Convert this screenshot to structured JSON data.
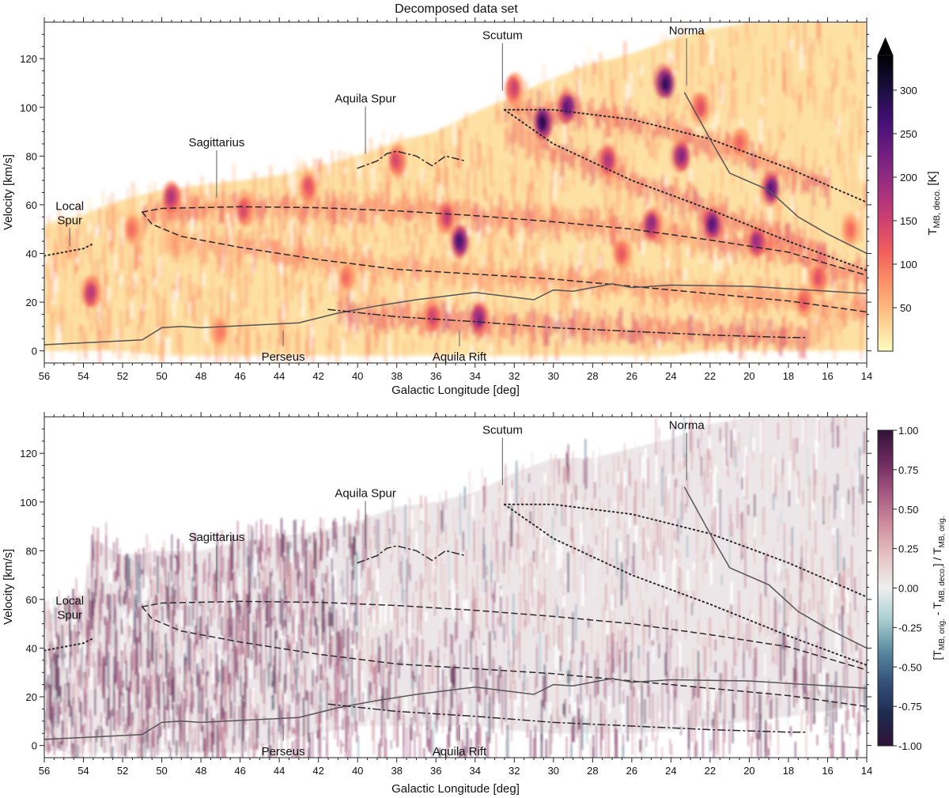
{
  "chart_data": [
    {
      "type": "heatmap",
      "title": "Decomposed data set",
      "xlabel": "Galactic Longitude [deg]",
      "ylabel": "Velocity [km/s]",
      "xlim": [
        56,
        14
      ],
      "ylim": [
        -5,
        135
      ],
      "xticks": [
        56,
        54,
        52,
        50,
        48,
        46,
        44,
        42,
        40,
        38,
        36,
        34,
        32,
        30,
        28,
        26,
        24,
        22,
        20,
        18,
        16,
        14
      ],
      "yticks": [
        0,
        20,
        40,
        60,
        80,
        100,
        120
      ],
      "colorbar": {
        "label": "T_MB,deco. [K]",
        "label_main": "T",
        "label_sub": "MB, deco.",
        "label_unit": " [K]",
        "ticks": [
          50,
          100,
          150,
          200,
          250,
          300
        ],
        "range": [
          0,
          340
        ],
        "extend": "max",
        "colormap": "magma_r",
        "colors": [
          "#fcfdbf",
          "#feca8d",
          "#fd9668",
          "#f1605d",
          "#cd4071",
          "#9e2f7f",
          "#721f81",
          "#440f76",
          "#180f3d",
          "#000004"
        ]
      },
      "emission": {
        "envelope_lon": [
          56,
          54,
          52,
          50,
          48,
          46,
          44,
          42,
          40,
          38,
          36,
          34,
          32,
          30,
          28,
          26,
          24,
          22,
          20,
          18,
          16,
          14
        ],
        "envelope_top": [
          52,
          56,
          62,
          66,
          68,
          70,
          72,
          76,
          80,
          86,
          90,
          98,
          105,
          112,
          118,
          122,
          128,
          132,
          135,
          135,
          135,
          135
        ],
        "envelope_bottom": [
          0,
          0,
          0,
          -2,
          -2,
          -2,
          -2,
          -2,
          -2,
          -2,
          -2,
          -2,
          -2,
          -2,
          -2,
          -2,
          -2,
          0,
          0,
          0,
          0,
          0
        ],
        "clumps": [
          {
            "lon": 30.5,
            "v": 94,
            "peak": 330
          },
          {
            "lon": 24.3,
            "v": 110,
            "peak": 320
          },
          {
            "lon": 34.8,
            "v": 45,
            "peak": 300
          },
          {
            "lon": 29.3,
            "v": 100,
            "peak": 280
          },
          {
            "lon": 18.9,
            "v": 67,
            "peak": 280
          },
          {
            "lon": 21.9,
            "v": 52,
            "peak": 280
          },
          {
            "lon": 23.5,
            "v": 80,
            "peak": 240
          },
          {
            "lon": 25.0,
            "v": 52,
            "peak": 230
          },
          {
            "lon": 19.6,
            "v": 45,
            "peak": 220
          },
          {
            "lon": 27.2,
            "v": 78,
            "peak": 200
          },
          {
            "lon": 33.8,
            "v": 13,
            "peak": 240
          },
          {
            "lon": 49.5,
            "v": 63,
            "peak": 200
          },
          {
            "lon": 53.6,
            "v": 24,
            "peak": 190
          },
          {
            "lon": 35.5,
            "v": 55,
            "peak": 180
          },
          {
            "lon": 32.0,
            "v": 108,
            "peak": 170
          },
          {
            "lon": 38.0,
            "v": 78,
            "peak": 160
          },
          {
            "lon": 42.5,
            "v": 67,
            "peak": 150
          },
          {
            "lon": 45.8,
            "v": 58,
            "peak": 160
          },
          {
            "lon": 16.5,
            "v": 30,
            "peak": 150
          },
          {
            "lon": 26.5,
            "v": 40,
            "peak": 140
          },
          {
            "lon": 40.5,
            "v": 30,
            "peak": 120
          },
          {
            "lon": 22.5,
            "v": 100,
            "peak": 150
          },
          {
            "lon": 20.5,
            "v": 85,
            "peak": 130
          },
          {
            "lon": 36.2,
            "v": 14,
            "peak": 170
          },
          {
            "lon": 47.0,
            "v": 8,
            "peak": 110
          },
          {
            "lon": 51.5,
            "v": 50,
            "peak": 120
          },
          {
            "lon": 17.2,
            "v": 20,
            "peak": 140
          },
          {
            "lon": 14.8,
            "v": 50,
            "peak": 120
          }
        ]
      },
      "annotations": [
        {
          "text": "Local\nSpur",
          "lon": 54.7,
          "v": 52
        },
        {
          "text": "Sagittarius",
          "lon": 47.2,
          "v": 84
        },
        {
          "text": "Aquila Spur",
          "lon": 39.6,
          "v": 102
        },
        {
          "text": "Scutum",
          "lon": 32.6,
          "v": 128
        },
        {
          "text": "Norma",
          "lon": 23.2,
          "v": 130
        },
        {
          "text": "Perseus",
          "lon": 43.8,
          "v": -2
        },
        {
          "text": "Aquila Rift",
          "lon": 34.8,
          "v": -2
        }
      ],
      "lines": [
        {
          "name": "Local Spur",
          "style": "dotted",
          "x": [
            56,
            55,
            54,
            53.5
          ],
          "y": [
            39,
            40.5,
            42,
            44
          ]
        },
        {
          "name": "Sagittarius",
          "style": "dashed",
          "x": [
            51,
            50,
            46,
            42,
            38,
            34,
            30,
            26,
            22,
            18,
            14
          ],
          "y": [
            57,
            58.5,
            59.2,
            58.8,
            57.5,
            55.5,
            53,
            50,
            45.5,
            40.5,
            31
          ]
        },
        {
          "name": "Sagittarius",
          "style": "dashed",
          "x": [
            51,
            50.5,
            49,
            46,
            42,
            38,
            34,
            30,
            26,
            22,
            18,
            14
          ],
          "y": [
            57,
            52,
            47,
            42.5,
            37.5,
            33.5,
            31.5,
            29.5,
            26.5,
            23.5,
            20.5,
            16
          ]
        },
        {
          "name": "Aquila Spur",
          "style": "dashdot",
          "x": [
            40,
            39,
            38.5,
            38,
            37,
            36.2,
            35.5,
            34.5
          ],
          "y": [
            75,
            78,
            81,
            82,
            80,
            76,
            80,
            78
          ]
        },
        {
          "name": "Scutum",
          "style": "dotted",
          "x": [
            32.5,
            30,
            26,
            22,
            18,
            14
          ],
          "y": [
            99,
            99,
            95,
            87,
            75,
            61
          ]
        },
        {
          "name": "Scutum",
          "style": "dotted",
          "x": [
            32.5,
            30,
            26,
            22,
            18,
            14
          ],
          "y": [
            99,
            85,
            70,
            58,
            45,
            33
          ]
        },
        {
          "name": "Norma",
          "style": "solid",
          "x": [
            23.3,
            22,
            21,
            19,
            17.5,
            16,
            14
          ],
          "y": [
            106,
            87,
            73,
            66,
            55,
            48,
            40
          ]
        },
        {
          "name": "Perseus",
          "style": "solid",
          "x": [
            56,
            51,
            50,
            49,
            48,
            43,
            41,
            39,
            37,
            34,
            31,
            30,
            29,
            27,
            26,
            24,
            20,
            14
          ],
          "y": [
            2.5,
            4.5,
            9.5,
            10,
            9.5,
            11.5,
            15.5,
            18.5,
            21,
            24,
            21,
            25,
            24.5,
            27.5,
            26,
            27,
            26.5,
            23.5
          ]
        },
        {
          "name": "Aquila Rift",
          "style": "dashdot",
          "x": [
            41.5,
            38,
            34,
            30,
            26,
            22,
            18,
            17
          ],
          "y": [
            17,
            14,
            12,
            9.5,
            8,
            6.5,
            5.5,
            5.5
          ]
        }
      ]
    },
    {
      "type": "heatmap",
      "title": "",
      "xlabel": "Galactic Longitude [deg]",
      "ylabel": "Velocity [km/s]",
      "xlim": [
        56,
        14
      ],
      "ylim": [
        -5,
        135
      ],
      "xticks": [
        56,
        54,
        52,
        50,
        48,
        46,
        44,
        42,
        40,
        38,
        36,
        34,
        32,
        30,
        28,
        26,
        24,
        22,
        20,
        18,
        16,
        14
      ],
      "yticks": [
        0,
        20,
        40,
        60,
        80,
        100,
        120
      ],
      "colorbar": {
        "label": "[T_MB,orig. - T_MB,deco.] / T_MB,orig.",
        "ticks": [
          -1.0,
          -0.75,
          -0.5,
          -0.25,
          0.0,
          0.25,
          0.5,
          0.75,
          1.0
        ],
        "tick_labels": [
          "-1.00",
          "-0.75",
          "-0.50",
          "-0.25",
          "0.00",
          "0.25",
          "0.50",
          "0.75",
          "1.00"
        ],
        "range": [
          -1,
          1
        ],
        "colormap": "twilight",
        "colors": [
          "#2f1436",
          "#1e2a4f",
          "#34507a",
          "#5a8aa0",
          "#a9cfd0",
          "#efefef",
          "#e6c4c6",
          "#cf8e9e",
          "#a4597f",
          "#6e2a5f",
          "#2f1436"
        ]
      },
      "residual_envelope": {
        "lon": [
          56,
          54,
          53.5,
          52,
          50,
          48,
          46,
          44,
          42,
          40,
          38,
          36,
          34,
          32,
          30,
          28,
          26,
          24,
          22,
          20,
          18,
          16,
          14
        ],
        "top": [
          55,
          62,
          85,
          78,
          80,
          80,
          84,
          86,
          88,
          92,
          98,
          100,
          104,
          112,
          118,
          118,
          122,
          126,
          132,
          135,
          135,
          135,
          135
        ],
        "bottom": [
          -2,
          -3,
          -3,
          -3,
          -3,
          -3,
          -3,
          2,
          5,
          8,
          8,
          8,
          8,
          6,
          5,
          5,
          5,
          6,
          8,
          10,
          12,
          14,
          18
        ]
      },
      "annotations": [
        {
          "text": "Local\nSpur",
          "lon": 54.7,
          "v": 52
        },
        {
          "text": "Sagittarius",
          "lon": 47.2,
          "v": 84
        },
        {
          "text": "Aquila Spur",
          "lon": 39.6,
          "v": 102
        },
        {
          "text": "Scutum",
          "lon": 32.6,
          "v": 128
        },
        {
          "text": "Norma",
          "lon": 23.2,
          "v": 130
        },
        {
          "text": "Perseus",
          "lon": 43.8,
          "v": -2
        },
        {
          "text": "Aquila Rift",
          "lon": 34.8,
          "v": -2
        }
      ],
      "lines_same_as_top": true
    }
  ]
}
